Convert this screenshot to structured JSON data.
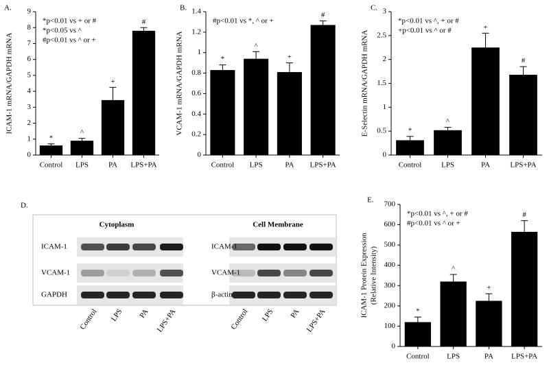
{
  "chart_data": [
    {
      "type": "bar",
      "panel": "A.",
      "ylabel": [
        "ICAM-1 mRNA/GAPDH mRNA"
      ],
      "annotations": [
        "*p<0.01 vs + or #",
        "*p<0.05 vs ^",
        "#p<0.01 vs ^ or +"
      ],
      "categories": [
        "Control",
        "LPS",
        "PA",
        "LPS+PA"
      ],
      "values": [
        0.6,
        0.9,
        3.45,
        7.8
      ],
      "errors": [
        0.1,
        0.15,
        0.8,
        0.2
      ],
      "markers": [
        "*",
        "^",
        "+",
        "#"
      ],
      "color": "#000000",
      "ylim": [
        0,
        9
      ],
      "yticks": [
        0,
        1,
        2,
        3,
        4,
        5,
        6,
        7,
        8,
        9
      ]
    },
    {
      "type": "bar",
      "panel": "B.",
      "ylabel": [
        "VCAM-1 mRNA/GAPDH mRNA"
      ],
      "annotations": [
        "#p<0.01 vs *, ^ or +"
      ],
      "categories": [
        "Control",
        "LPS",
        "PA",
        "LPS+PA"
      ],
      "values": [
        0.83,
        0.94,
        0.81,
        1.27
      ],
      "errors": [
        0.05,
        0.07,
        0.09,
        0.04
      ],
      "markers": [
        "*",
        "^",
        "+",
        "#"
      ],
      "color": "#000000",
      "ylim": [
        0,
        1.4
      ],
      "yticks": [
        0,
        0.2,
        0.4,
        0.6,
        0.8,
        1,
        1.2,
        1.4
      ]
    },
    {
      "type": "bar",
      "panel": "C.",
      "ylabel": [
        "E-Selectin mRNA/GAPDH mRNA"
      ],
      "annotations": [
        "*p<0.01 vs ^, + or #",
        "+p<0.01 vs ^ or #"
      ],
      "categories": [
        "Control",
        "LPS",
        "PA",
        "LPS+PA"
      ],
      "values": [
        0.31,
        0.52,
        2.25,
        1.68
      ],
      "errors": [
        0.08,
        0.06,
        0.3,
        0.17
      ],
      "markers": [
        "*",
        "^",
        "+",
        "#"
      ],
      "color": "#000000",
      "ylim": [
        0,
        3
      ],
      "yticks": [
        0,
        0.5,
        1,
        1.5,
        2,
        2.5,
        3
      ]
    },
    {
      "type": "bar",
      "panel": "E.",
      "ylabel": [
        "ICAM-1 Protein Expression",
        "(Relative Intensity)"
      ],
      "annotations": [
        "*p<0.01 vs ^, + or #",
        "#p<0.01 vs ^ or +"
      ],
      "categories": [
        "Control",
        "LPS",
        "PA",
        "LPS+PA"
      ],
      "values": [
        120,
        320,
        225,
        565
      ],
      "errors": [
        25,
        35,
        35,
        55
      ],
      "markers": [
        "*",
        "^",
        "+",
        "#"
      ],
      "color": "#000000",
      "ylim": [
        0,
        700
      ],
      "yticks": [
        0,
        100,
        200,
        300,
        400,
        500,
        600,
        700
      ]
    }
  ],
  "blot": {
    "panel": "D.",
    "sections": [
      {
        "title": "Cytoplasm",
        "rows": [
          "ICAM-1",
          "VCAM-1",
          "GAPDH"
        ]
      },
      {
        "title": "Cell Membrane",
        "rows": [
          "ICAM-1",
          "VCAM-1",
          "β-actin"
        ]
      }
    ],
    "lanes": [
      "Control",
      "LPS",
      "PA",
      "LPS+PA"
    ]
  }
}
